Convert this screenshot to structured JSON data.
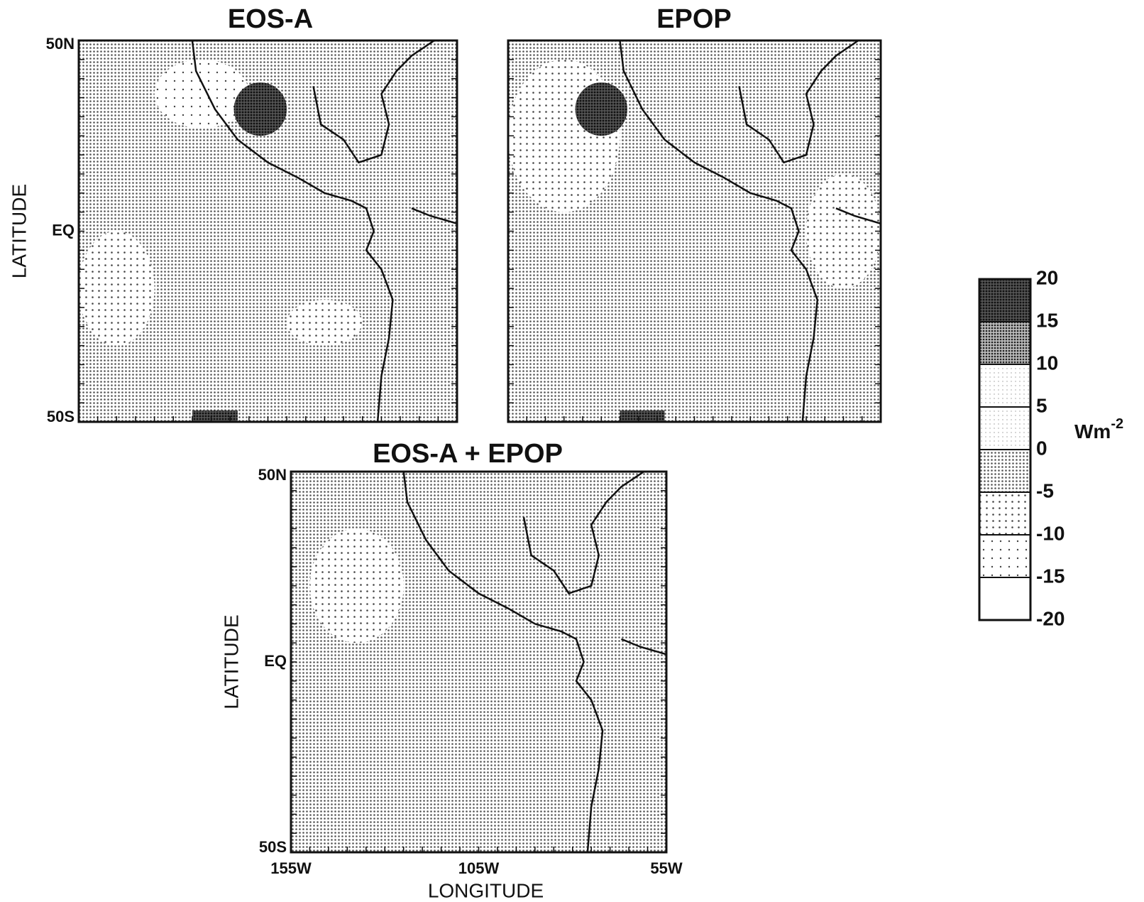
{
  "panels": [
    {
      "title": "EOS-A",
      "y_axis_label": "LATITUDE",
      "y_tick_labels": [
        "50N",
        "EQ",
        "50S"
      ]
    },
    {
      "title": "EPOP"
    },
    {
      "title": "EOS-A +  EPOP",
      "y_axis_label": "LATITUDE",
      "y_tick_labels": [
        "50N",
        "EQ",
        "50S"
      ],
      "x_tick_labels": [
        "155W",
        "105W",
        "55W"
      ],
      "x_axis_label": "LONGITUDE"
    }
  ],
  "colorbar": {
    "tick_labels": [
      20,
      15,
      10,
      5,
      0,
      -5,
      -10,
      -15,
      -20
    ],
    "unit": {
      "base": "Wm",
      "exponent": "-2"
    }
  }
}
